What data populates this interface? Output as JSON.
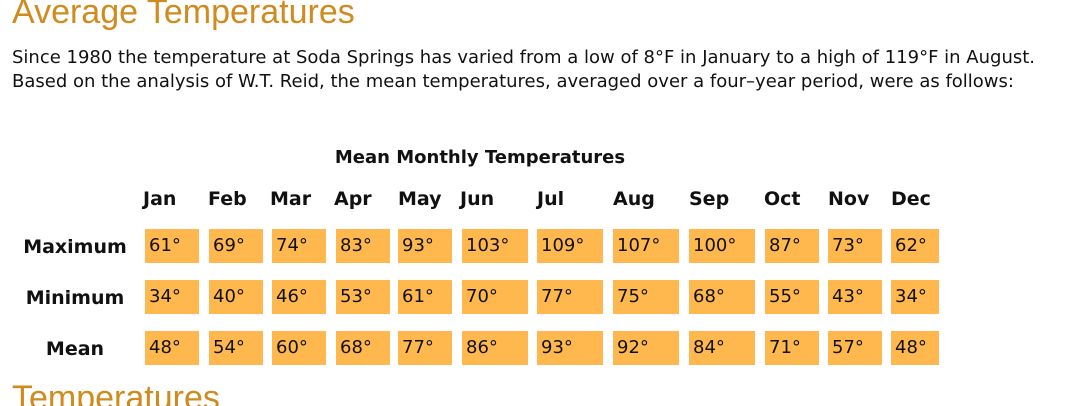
{
  "heading": "Average Temperatures",
  "intro": "Since 1980 the temperature at Soda Springs has varied from a low of 8°F in January to a high of 119°F in August. Based on the analysis of W.T. Reid, the mean temperatures, averaged over a four–year period, were as follows:",
  "table": {
    "caption": "Mean Monthly Temperatures",
    "months": [
      "Jan",
      "Feb",
      "Mar",
      "Apr",
      "May",
      "Jun",
      "Jul",
      "Aug",
      "Sep",
      "Oct",
      "Nov",
      "Dec"
    ],
    "rows": [
      {
        "label": "Maximum",
        "values": [
          "61°",
          "69°",
          "74°",
          "83°",
          "93°",
          "103°",
          "109°",
          "107°",
          "100°",
          "87°",
          "73°",
          "62°"
        ]
      },
      {
        "label": "Minimum",
        "values": [
          "34°",
          "40°",
          "46°",
          "53°",
          "61°",
          "70°",
          "77°",
          "75°",
          "68°",
          "55°",
          "43°",
          "34°"
        ]
      },
      {
        "label": "Mean",
        "values": [
          "48°",
          "54°",
          "60°",
          "68°",
          "77°",
          "86°",
          "93°",
          "92°",
          "84°",
          "71°",
          "57°",
          "48°"
        ]
      }
    ]
  },
  "next_heading": "Temperatures"
}
